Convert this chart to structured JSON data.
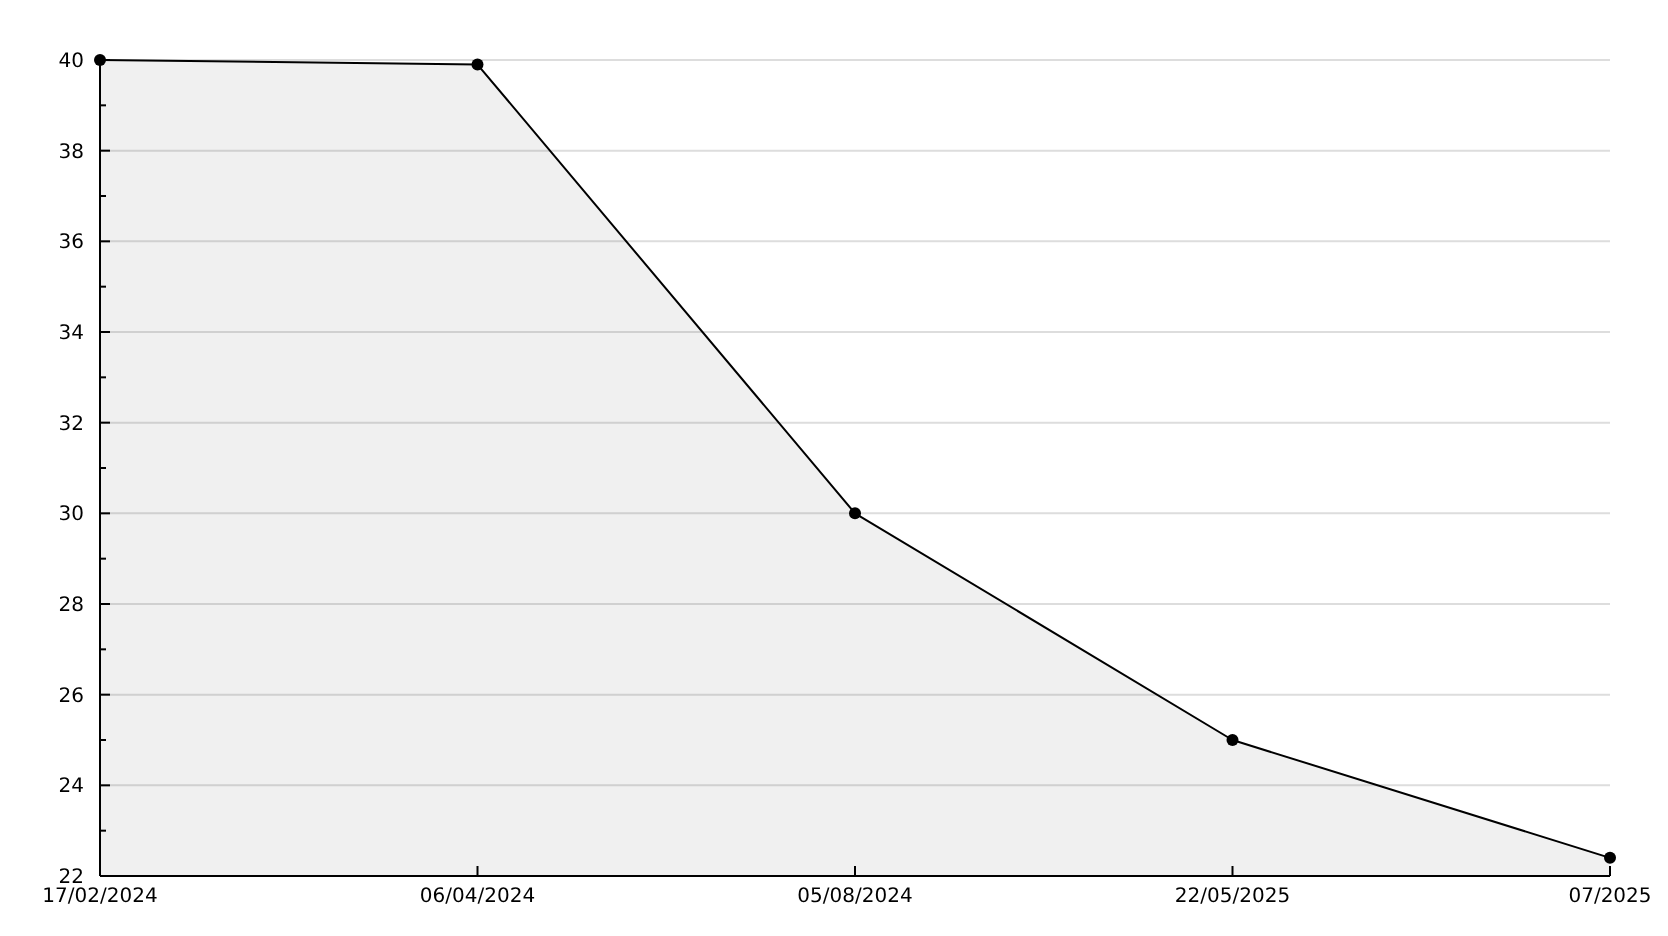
{
  "chart_data": {
    "type": "area",
    "categories": [
      "17/02/2024",
      "06/04/2024",
      "05/08/2024",
      "22/05/2025",
      "07/2025"
    ],
    "series": [
      {
        "color": "#000000",
        "values": [
          40,
          39.9,
          30,
          25,
          22.4
        ]
      }
    ],
    "ylim": [
      22,
      40
    ],
    "yticks": [
      22,
      {
        "value": 23,
        "label": null
      },
      24,
      {
        "value": 25,
        "label": null
      },
      26,
      {
        "value": 27,
        "label": null
      },
      28,
      {
        "value": 29,
        "label": null
      },
      30,
      {
        "value": 31,
        "label": null
      },
      32,
      {
        "value": 33,
        "label": null
      },
      34,
      {
        "value": 35,
        "label": null
      },
      36,
      {
        "value": 37,
        "label": null
      },
      38,
      {
        "value": 39,
        "label": null
      },
      40
    ],
    "grid": "y",
    "marker": "circle",
    "line_style": "solid"
  }
}
